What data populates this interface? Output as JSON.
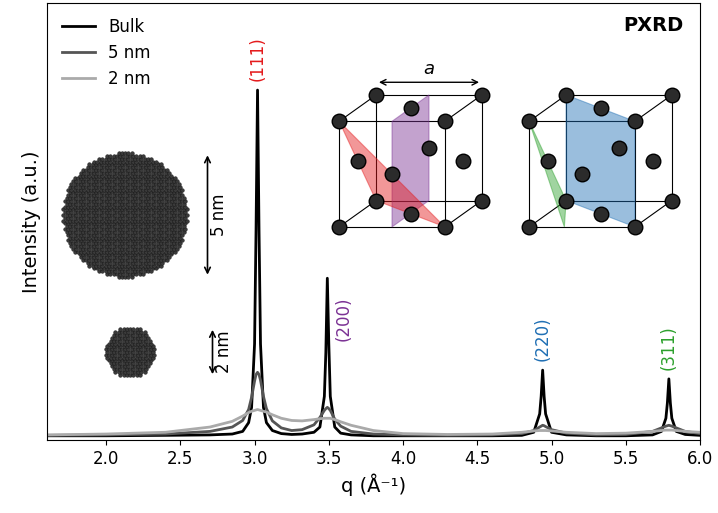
{
  "chart_data": {
    "type": "line",
    "xlabel": "q (Å⁻¹)",
    "ylabel": "Intensity (a.u.)",
    "x": [
      1.6,
      2.0,
      2.4,
      2.7,
      2.85,
      2.92,
      2.96,
      2.98,
      3.0,
      3.01,
      3.02,
      3.03,
      3.04,
      3.06,
      3.08,
      3.12,
      3.18,
      3.25,
      3.32,
      3.4,
      3.44,
      3.47,
      3.48,
      3.49,
      3.5,
      3.51,
      3.54,
      3.58,
      3.65,
      3.8,
      4.0,
      4.3,
      4.6,
      4.8,
      4.88,
      4.92,
      4.93,
      4.94,
      4.95,
      4.96,
      5.0,
      5.1,
      5.3,
      5.5,
      5.68,
      5.74,
      5.77,
      5.78,
      5.79,
      5.8,
      5.81,
      5.84,
      5.9,
      6.0
    ],
    "series": [
      {
        "name": "Bulk",
        "color": "#000000",
        "values": [
          0.01,
          0.01,
          0.011,
          0.012,
          0.014,
          0.02,
          0.04,
          0.075,
          0.22,
          0.48,
          0.8,
          0.48,
          0.22,
          0.075,
          0.04,
          0.022,
          0.015,
          0.013,
          0.014,
          0.018,
          0.03,
          0.1,
          0.2,
          0.37,
          0.22,
          0.1,
          0.03,
          0.016,
          0.012,
          0.01,
          0.01,
          0.01,
          0.01,
          0.011,
          0.018,
          0.06,
          0.1,
          0.16,
          0.1,
          0.06,
          0.018,
          0.012,
          0.01,
          0.01,
          0.012,
          0.02,
          0.05,
          0.085,
          0.14,
          0.085,
          0.05,
          0.02,
          0.013,
          0.011
        ]
      },
      {
        "name": "5 nm",
        "color": "#555555",
        "values": [
          0.011,
          0.012,
          0.014,
          0.02,
          0.03,
          0.045,
          0.07,
          0.098,
          0.135,
          0.15,
          0.155,
          0.15,
          0.137,
          0.1,
          0.072,
          0.044,
          0.028,
          0.022,
          0.024,
          0.035,
          0.052,
          0.068,
          0.072,
          0.075,
          0.072,
          0.068,
          0.048,
          0.032,
          0.02,
          0.014,
          0.012,
          0.011,
          0.012,
          0.015,
          0.022,
          0.03,
          0.032,
          0.034,
          0.033,
          0.031,
          0.024,
          0.016,
          0.012,
          0.013,
          0.02,
          0.028,
          0.032,
          0.033,
          0.034,
          0.033,
          0.032,
          0.028,
          0.02,
          0.015
        ]
      },
      {
        "name": "2 nm",
        "color": "#aaaaaa",
        "values": [
          0.012,
          0.014,
          0.018,
          0.03,
          0.043,
          0.055,
          0.063,
          0.066,
          0.068,
          0.069,
          0.07,
          0.069,
          0.068,
          0.066,
          0.064,
          0.058,
          0.05,
          0.045,
          0.044,
          0.047,
          0.049,
          0.05,
          0.05,
          0.05,
          0.05,
          0.05,
          0.047,
          0.042,
          0.034,
          0.022,
          0.015,
          0.013,
          0.014,
          0.018,
          0.021,
          0.022,
          0.022,
          0.022,
          0.022,
          0.022,
          0.021,
          0.018,
          0.015,
          0.016,
          0.02,
          0.022,
          0.023,
          0.023,
          0.023,
          0.023,
          0.023,
          0.022,
          0.02,
          0.018
        ]
      }
    ],
    "xlim": [
      1.6,
      6.0
    ],
    "xticks": [
      2.0,
      2.5,
      3.0,
      3.5,
      4.0,
      4.5,
      5.0,
      5.5,
      6.0
    ],
    "ylim": [
      0,
      1.0
    ],
    "yticks": [],
    "tick_labels": "x",
    "legend": "upper left",
    "annotations": [
      {
        "text": "(111)",
        "color": "#e41a1c"
      },
      {
        "text": "(200)",
        "color": "#7b3294"
      },
      {
        "text": "(220)",
        "color": "#1f6fb4"
      },
      {
        "text": "(311)",
        "color": "#2ca02c"
      }
    ],
    "panel_label": "PXRD",
    "insets": {
      "particles": [
        "5 nm",
        "2 nm"
      ],
      "lattice_label": "a"
    }
  }
}
